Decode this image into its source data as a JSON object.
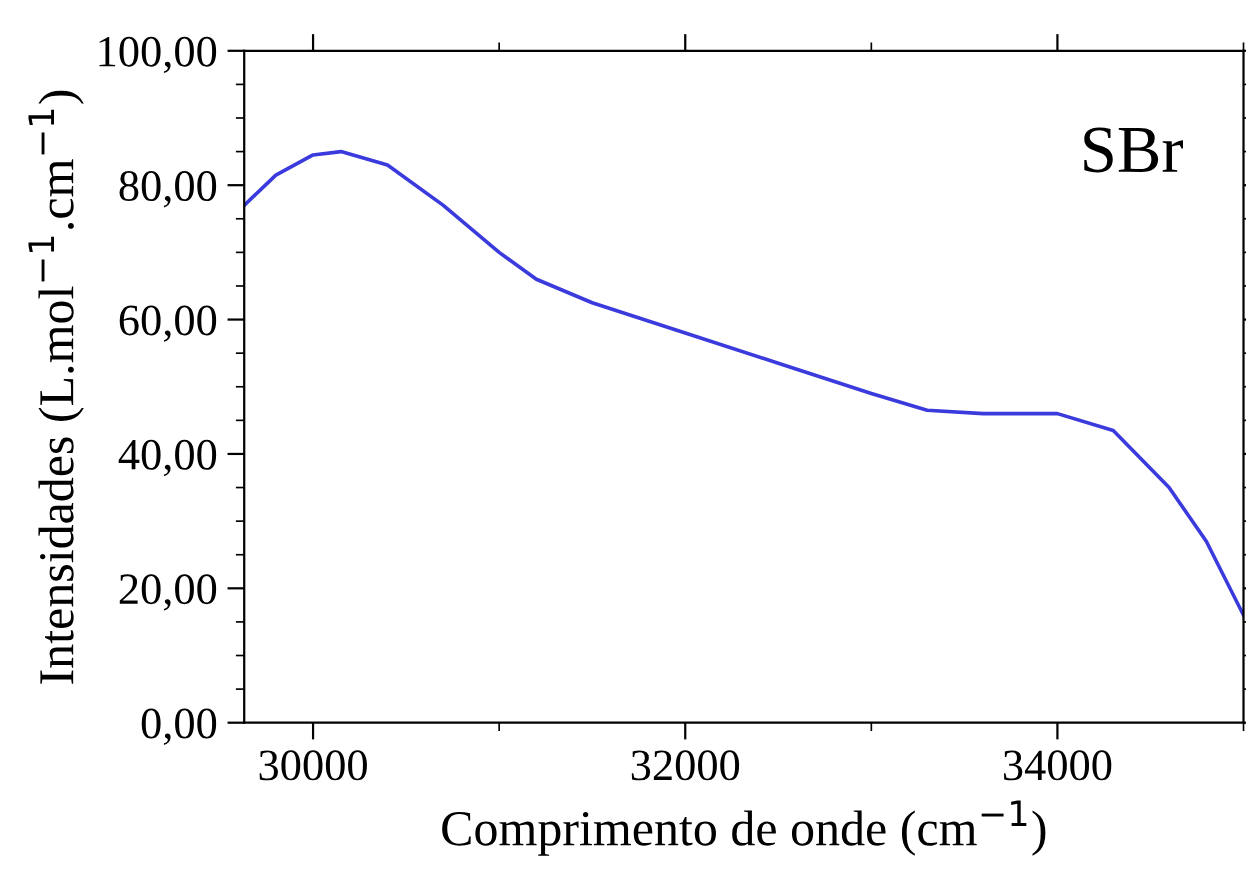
{
  "chart_data": {
    "type": "line",
    "xlabel": "Comprimento de onde (cm$^{−1}$)",
    "ylabel": "Intensidades (L.mol$^{−1}$.cm$^{−1}$)",
    "annotations": [
      "SBr"
    ],
    "x": [
      29630,
      29800,
      30000,
      30150,
      30400,
      30700,
      31000,
      31200,
      31500,
      32000,
      32500,
      33000,
      33300,
      33600,
      34000,
      34300,
      34600,
      34800,
      35000
    ],
    "series": [
      {
        "color": "#3b3bdd",
        "values": [
          77,
          81.5,
          84.5,
          85,
          83,
          77,
          70,
          66,
          62.5,
          58,
          53.5,
          49,
          46.5,
          46,
          46,
          43.5,
          35,
          27,
          16
        ]
      }
    ],
    "xlim": [
      29630,
      35000
    ],
    "xticks": [
      30000,
      32000,
      34000
    ],
    "ylim": [
      0,
      100
    ],
    "yticks": [
      {
        "value": 0,
        "label": "0,00"
      },
      {
        "value": 20,
        "label": "20,00"
      },
      {
        "value": 40,
        "label": "40,00"
      },
      {
        "value": 60,
        "label": "60,00"
      },
      {
        "value": 80,
        "label": "80,00"
      },
      {
        "value": 100,
        "label": "100,00"
      }
    ],
    "grid": false,
    "legend": false,
    "marker": "none",
    "line_style": "solid"
  }
}
